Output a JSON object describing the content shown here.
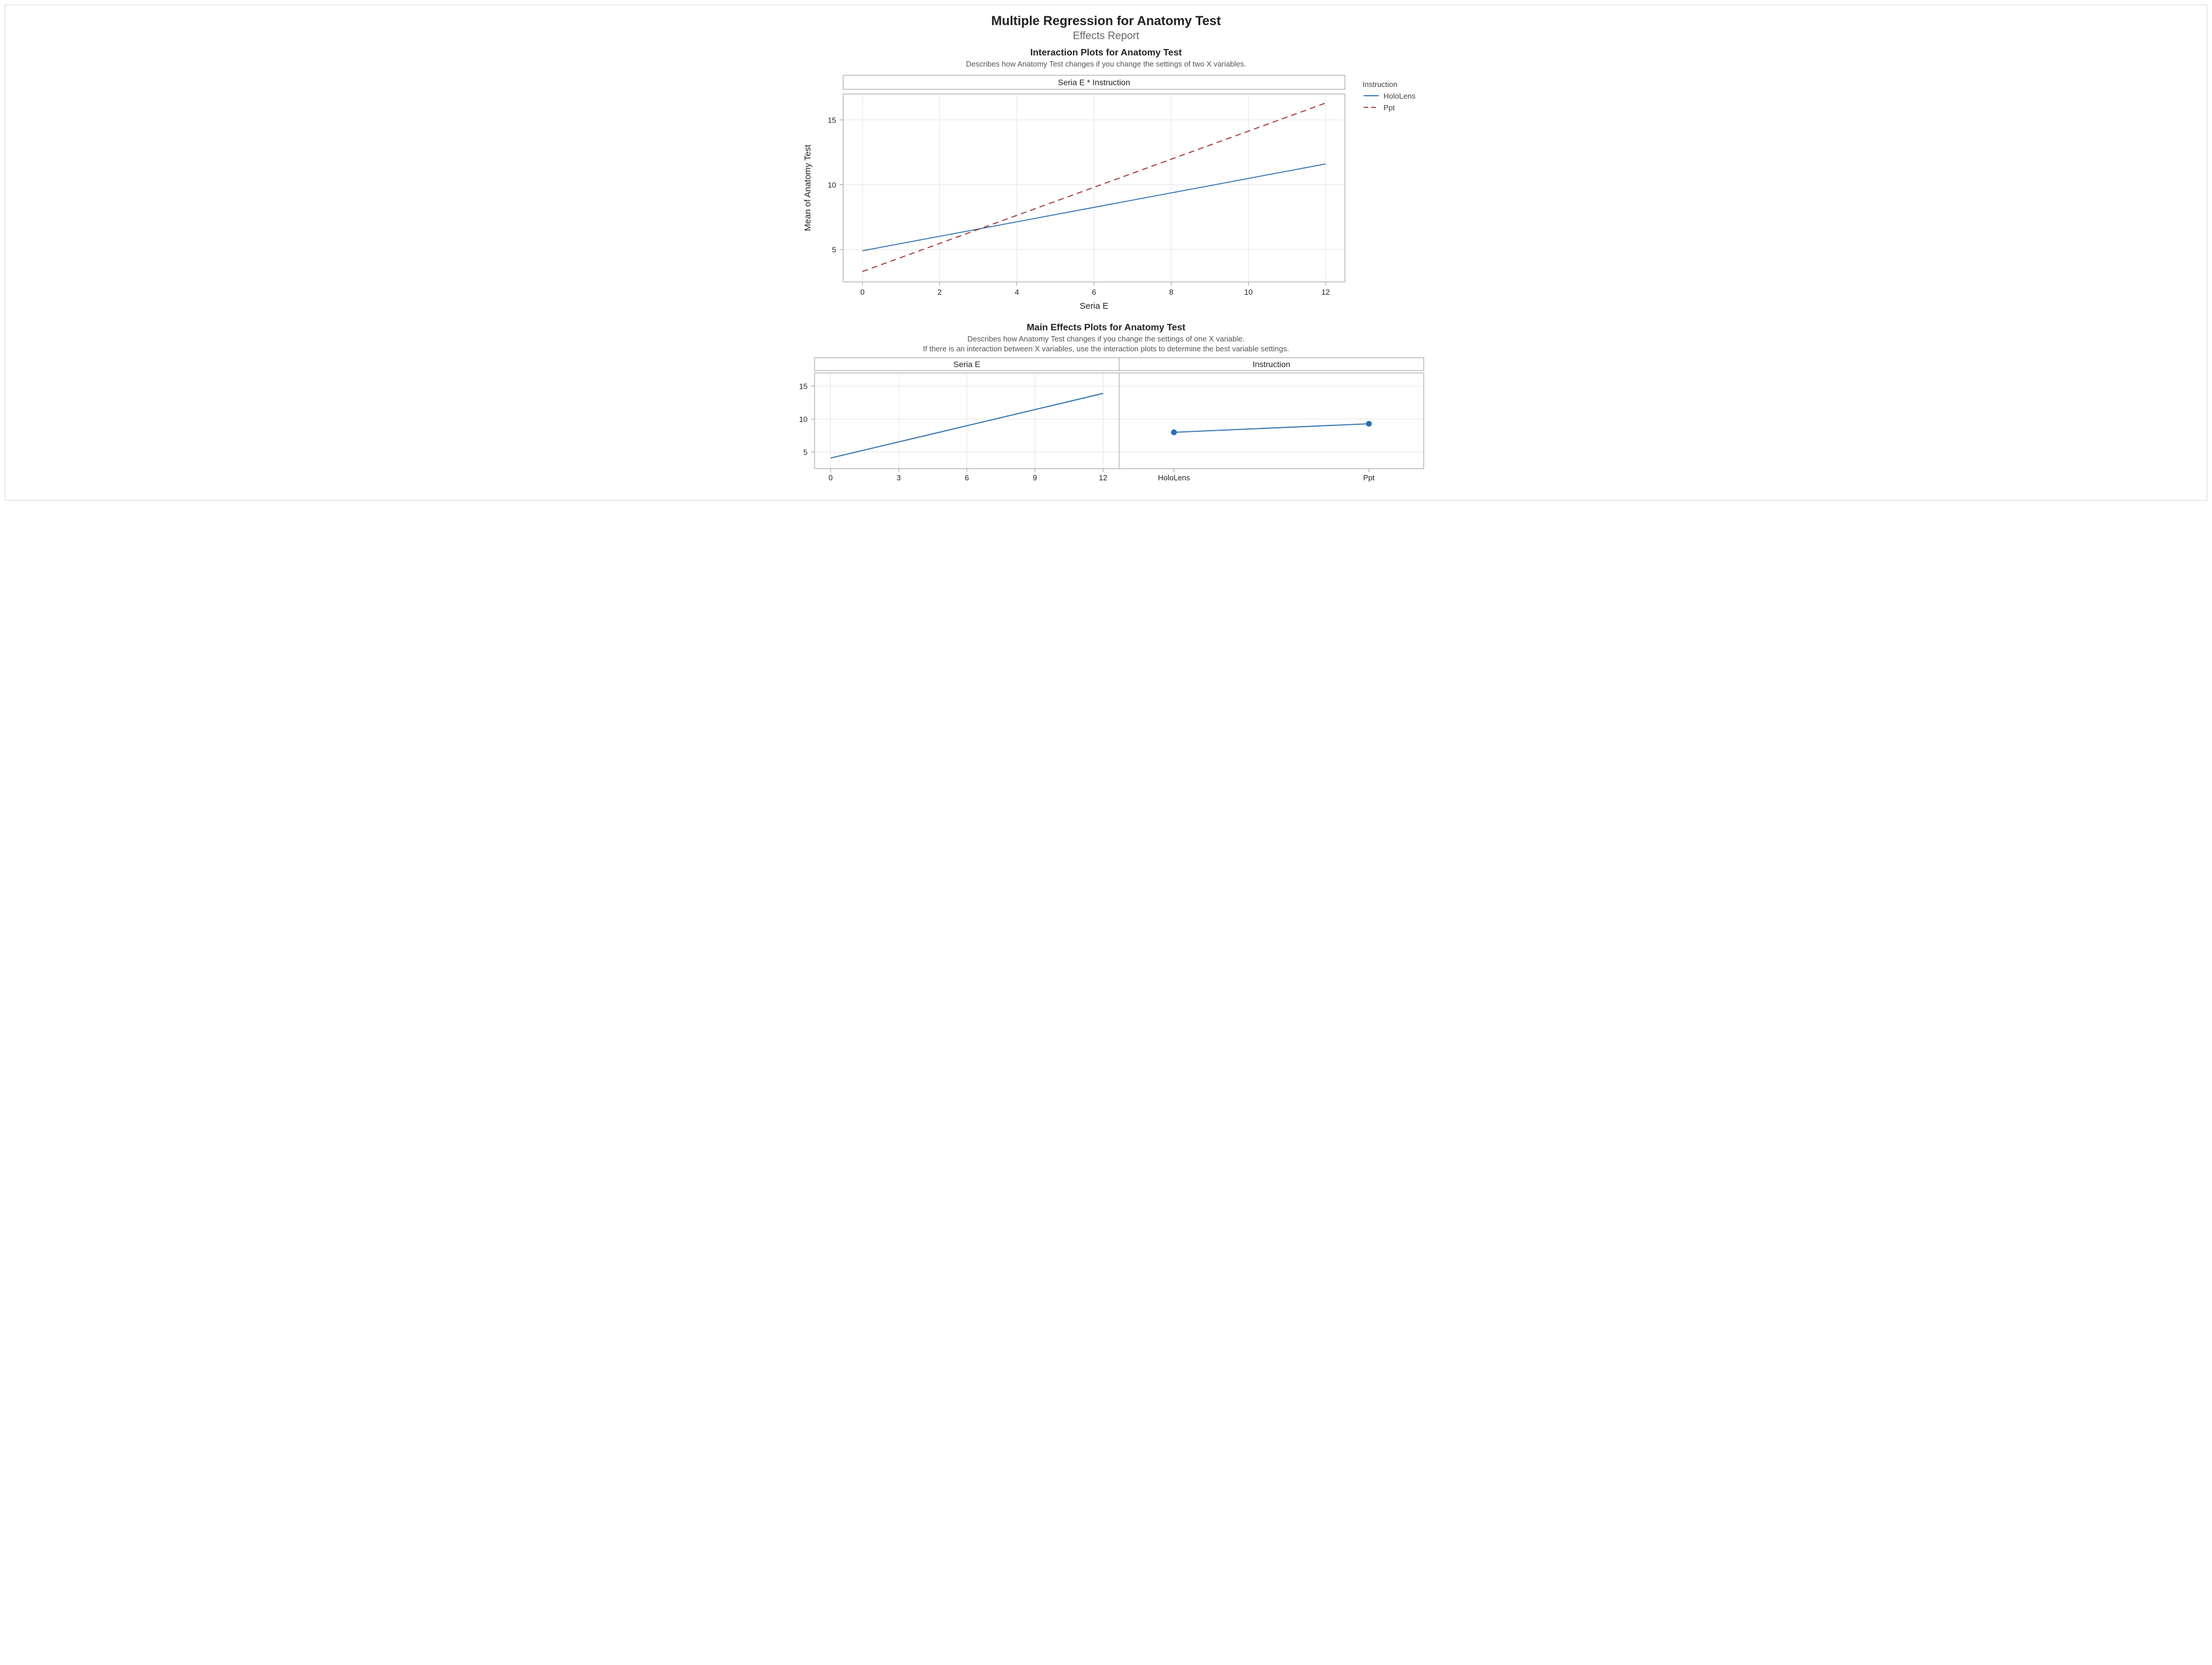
{
  "header": {
    "main_title": "Multiple Regression for Anatomy Test",
    "sub_title": "Effects Report"
  },
  "interaction": {
    "section_title": "Interaction Plots for Anatomy Test",
    "section_desc": "Describes how Anatomy Test changes if you change the settings of two X variables.",
    "panel_label": "Seria E * Instruction",
    "x_label": "Seria E",
    "y_label": "Mean of Anatomy Test",
    "x_ticks": [
      0,
      2,
      4,
      6,
      8,
      10,
      12
    ],
    "y_ticks": [
      5,
      10,
      15
    ],
    "xlim": [
      -0.5,
      12.5
    ],
    "ylim": [
      2.5,
      17.0
    ],
    "grid_color": "#e5e5e5",
    "frame_color": "#9a9a9a",
    "background_color": "#ffffff",
    "series": [
      {
        "name": "HoloLens",
        "color": "#2b6fb0",
        "style": "solid",
        "width": 1.6,
        "points": [
          [
            0,
            4.9
          ],
          [
            12,
            11.6
          ]
        ]
      },
      {
        "name": "Ppt",
        "color": "#a03a38",
        "style": "dashed",
        "dash": "10,7",
        "width": 1.8,
        "points": [
          [
            0,
            3.3
          ],
          [
            12,
            16.3
          ]
        ]
      }
    ],
    "legend": {
      "title": "Instruction",
      "items": [
        {
          "label": "HoloLens",
          "color": "#2b6fb0",
          "style": "solid"
        },
        {
          "label": "Ppt",
          "color": "#a03a38",
          "style": "dashed",
          "dash": "8,5"
        }
      ]
    }
  },
  "main_effects": {
    "section_title": "Main Effects Plots for Anatomy Test",
    "section_desc1": "Describes how Anatomy Test changes if you change the settings of one X variable.",
    "section_desc2": "If there is an interaction between X variables, use the interaction plots to determine the best variable settings.",
    "y_ticks": [
      5,
      10,
      15
    ],
    "ylim": [
      2.5,
      17.0
    ],
    "grid_color": "#e5e5e5",
    "frame_color": "#9a9a9a",
    "panels": [
      {
        "label": "Seria E",
        "type": "line",
        "x_type": "numeric",
        "x_ticks": [
          0,
          3,
          6,
          9,
          12
        ],
        "xlim": [
          -0.5,
          12.5
        ],
        "color": "#2b6fb0",
        "width": 1.8,
        "points": [
          [
            0,
            4.1
          ],
          [
            12,
            13.9
          ]
        ]
      },
      {
        "label": "Instruction",
        "type": "line-markers",
        "x_type": "categorical",
        "categories": [
          "HoloLens",
          "Ppt"
        ],
        "color": "#2b6fb0",
        "width": 1.8,
        "marker_radius": 5,
        "points": [
          [
            0,
            8.0
          ],
          [
            1,
            9.3
          ]
        ]
      }
    ]
  }
}
